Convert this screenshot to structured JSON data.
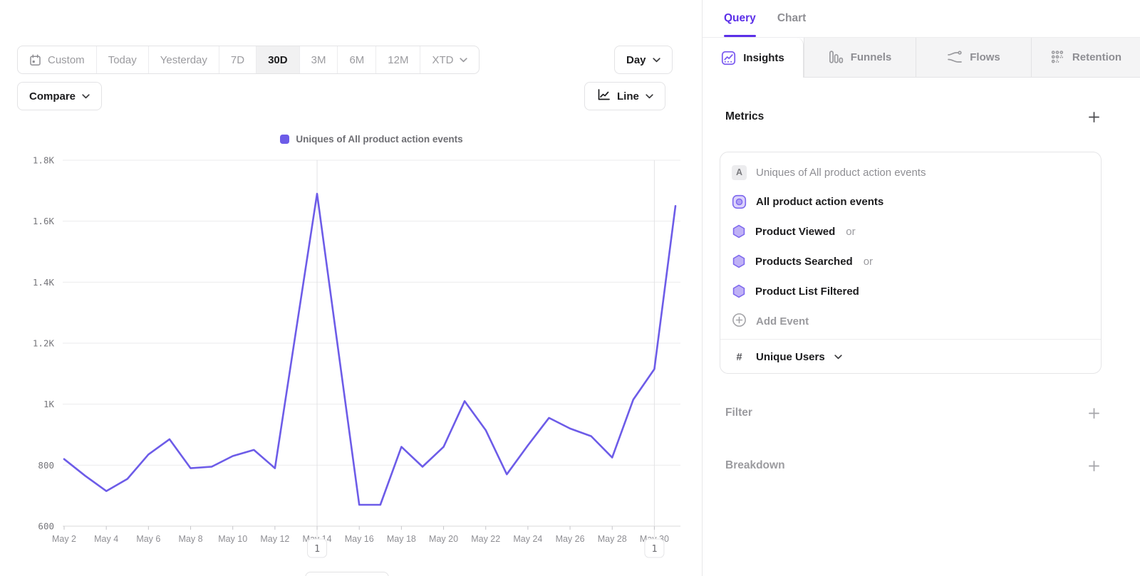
{
  "toolbar": {
    "ranges": [
      "Custom",
      "Today",
      "Yesterday",
      "7D",
      "30D",
      "3M",
      "6M",
      "12M",
      "XTD"
    ],
    "active_range": "30D",
    "granularity": "Day",
    "compare_label": "Compare",
    "chart_type": "Line"
  },
  "legend": {
    "label": "Uniques of All product action events",
    "color": "#6d5ce8"
  },
  "chart_data": {
    "type": "line",
    "title": "Uniques of All product action events",
    "x": [
      "May 2",
      "May 3",
      "May 4",
      "May 5",
      "May 6",
      "May 7",
      "May 8",
      "May 9",
      "May 10",
      "May 11",
      "May 12",
      "May 13",
      "May 14",
      "May 15",
      "May 16",
      "May 17",
      "May 18",
      "May 19",
      "May 20",
      "May 21",
      "May 22",
      "May 23",
      "May 24",
      "May 25",
      "May 26",
      "May 27",
      "May 28",
      "May 29",
      "May 30",
      "May 31"
    ],
    "series": [
      {
        "name": "Uniques of All product action events",
        "color": "#6d5ce8",
        "values": [
          820,
          765,
          715,
          755,
          835,
          885,
          790,
          795,
          830,
          850,
          790,
          1240,
          1690,
          1180,
          670,
          670,
          860,
          795,
          860,
          1010,
          915,
          770,
          865,
          955,
          920,
          895,
          825,
          1015,
          1115,
          1650
        ]
      }
    ],
    "ylim": [
      600,
      1800
    ],
    "y_ticks": [
      {
        "value": 600,
        "label": "600"
      },
      {
        "value": 800,
        "label": "800"
      },
      {
        "value": 1000,
        "label": "1K"
      },
      {
        "value": 1200,
        "label": "1.2K"
      },
      {
        "value": 1400,
        "label": "1.4K"
      },
      {
        "value": 1600,
        "label": "1.6K"
      },
      {
        "value": 1800,
        "label": "1.8K"
      }
    ],
    "x_tick_labels": [
      "May 2",
      "May 4",
      "May 6",
      "May 8",
      "May 10",
      "May 12",
      "May 14",
      "May 16",
      "May 18",
      "May 20",
      "May 22",
      "May 24",
      "May 26",
      "May 28",
      "May 30"
    ],
    "annotations": [
      {
        "x": "May 14",
        "label": "1"
      },
      {
        "x": "May 30",
        "label": "1"
      }
    ],
    "grid": true,
    "legend_position": "top"
  },
  "query_panel": {
    "tabs": [
      {
        "label": "Query",
        "active": true
      },
      {
        "label": "Chart",
        "active": false
      }
    ],
    "report_tabs": [
      {
        "label": "Insights",
        "icon": "insights-icon",
        "active": true
      },
      {
        "label": "Funnels",
        "icon": "funnels-icon",
        "active": false
      },
      {
        "label": "Flows",
        "icon": "flows-icon",
        "active": false
      },
      {
        "label": "Retention",
        "icon": "retention-icon",
        "active": false
      }
    ],
    "metrics": {
      "title": "Metrics",
      "row_badge": "A",
      "row_label": "Uniques of All product action events",
      "events": [
        {
          "label": "All product action events",
          "type": "group",
          "suffix": ""
        },
        {
          "label": "Product Viewed",
          "type": "event",
          "suffix": "or"
        },
        {
          "label": "Products Searched",
          "type": "event",
          "suffix": "or"
        },
        {
          "label": "Product List Filtered",
          "type": "event",
          "suffix": ""
        }
      ],
      "add_event": "Add Event",
      "measure": {
        "symbol": "#",
        "label": "Unique Users"
      }
    },
    "sections": [
      {
        "label": "Filter"
      },
      {
        "label": "Breakdown"
      }
    ]
  },
  "colors": {
    "accent_purple": "#5b2fe8",
    "line_purple": "#6d5ce8",
    "text_dark": "#1c1c1e",
    "text_gray": "#8e8e93",
    "border": "#e3e3e5"
  }
}
